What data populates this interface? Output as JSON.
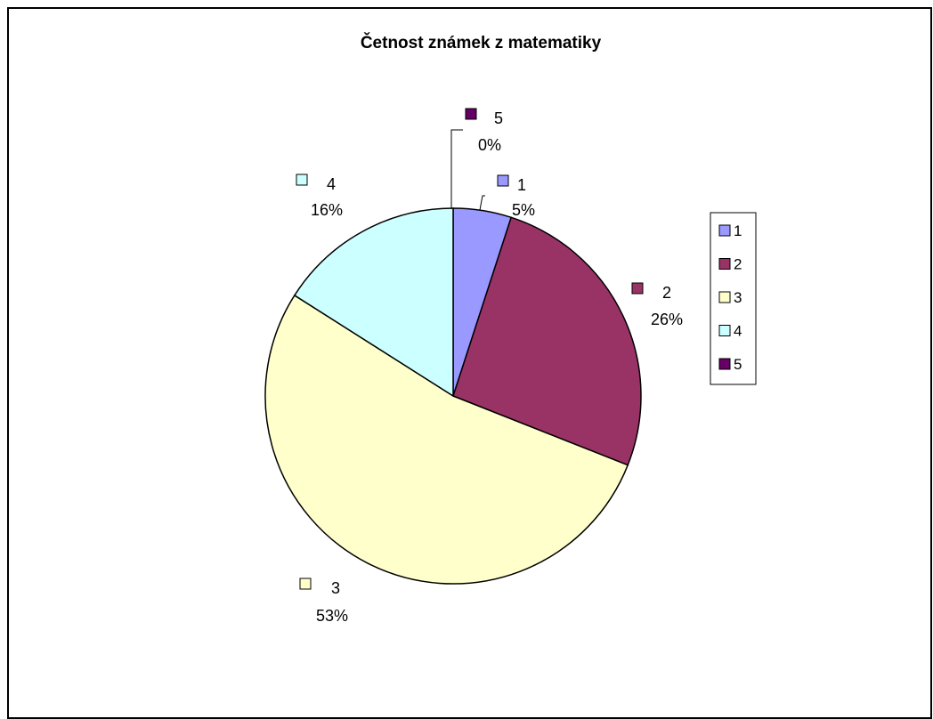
{
  "chart_data": {
    "type": "pie",
    "title": "Četnost známek z matematiky",
    "categories": [
      "1",
      "2",
      "3",
      "4",
      "5"
    ],
    "values": [
      5,
      26,
      53,
      16,
      0
    ],
    "percent_labels": [
      "5%",
      "26%",
      "53%",
      "16%",
      "0%"
    ],
    "colors": [
      "#9999FF",
      "#993366",
      "#FFFFCC",
      "#CCFFFF",
      "#660066"
    ],
    "legend": {
      "placement": "right",
      "entries": [
        "1",
        "2",
        "3",
        "4",
        "5"
      ]
    },
    "data_labels": true,
    "leader_lines": true
  }
}
